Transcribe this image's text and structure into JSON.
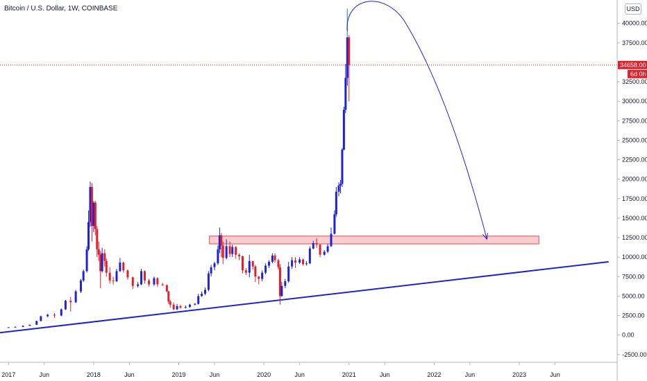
{
  "header": {
    "title": "Bitcoin / U.S. Dollar, 1W, COINBASE",
    "currency": "USD"
  },
  "price_marker": {
    "value": "34658.00",
    "countdown": "6d 0h"
  },
  "colors": {
    "up": "#1f22d4",
    "down": "#e0202a",
    "trend": "#1f22d4",
    "zone_fill": "#f9c7c9",
    "zone_stroke": "#e23a3e",
    "price_line": "#e0202a"
  },
  "chart_data": {
    "type": "candlestick",
    "x_tick_labels": [
      "2017",
      "Jun",
      "2018",
      "Jun",
      "2019",
      "Jun",
      "2020",
      "Jun",
      "2021",
      "Jun",
      "2022",
      "Jun",
      "2023",
      "Jun"
    ],
    "x_tick_dates": [
      2017.0,
      2017.42,
      2018.0,
      2018.42,
      2019.0,
      2019.42,
      2020.0,
      2020.42,
      2021.0,
      2021.42,
      2022.0,
      2022.42,
      2023.0,
      2023.42
    ],
    "y_tick_labels": [
      "-2500.00",
      "0.00",
      "2500.00",
      "5000.00",
      "7500.00",
      "10000.00",
      "12500.00",
      "15000.00",
      "17500.00",
      "20000.00",
      "22500.00",
      "25000.00",
      "27500.00",
      "30000.00",
      "32500.00",
      "37500.00",
      "40000.00"
    ],
    "ylim": [
      -3500,
      43000
    ],
    "xlim": [
      2016.9,
      2024.15
    ],
    "current_price": 34658,
    "resistance_zone": {
      "from": 2019.36,
      "to": 2023.23,
      "low": 11700,
      "high": 12700
    },
    "trendline": {
      "start": [
        2016.9,
        300
      ],
      "end": [
        2024.05,
        9400
      ]
    },
    "projection": {
      "start": [
        2020.98,
        39000
      ],
      "peak": [
        2021.0,
        42500
      ],
      "end": [
        2022.62,
        12300
      ]
    },
    "candles": [
      [
        2017.0,
        960,
        1000,
        900,
        1010
      ],
      [
        2017.08,
        1010,
        1050,
        970,
        1100
      ],
      [
        2017.17,
        1050,
        1190,
        1020,
        1230
      ],
      [
        2017.25,
        1190,
        1320,
        1150,
        1350
      ],
      [
        2017.33,
        1320,
        1800,
        1300,
        1850
      ],
      [
        2017.38,
        1800,
        2400,
        1750,
        2500
      ],
      [
        2017.46,
        2400,
        2600,
        2300,
        2750
      ],
      [
        2017.54,
        2600,
        2500,
        2200,
        2800
      ],
      [
        2017.62,
        2500,
        3300,
        2400,
        3400
      ],
      [
        2017.67,
        3300,
        4400,
        3200,
        4500
      ],
      [
        2017.73,
        4400,
        4200,
        3000,
        4900
      ],
      [
        2017.79,
        4200,
        5600,
        4100,
        5800
      ],
      [
        2017.85,
        5600,
        7000,
        5400,
        7200
      ],
      [
        2017.88,
        7000,
        8200,
        6800,
        8400
      ],
      [
        2017.92,
        8200,
        11000,
        8000,
        11400
      ],
      [
        2017.94,
        11000,
        14500,
        10800,
        16000
      ],
      [
        2017.96,
        14500,
        19000,
        13900,
        19700
      ],
      [
        2017.98,
        19000,
        14000,
        12000,
        19500
      ],
      [
        2018.0,
        14000,
        17000,
        13200,
        17200
      ],
      [
        2018.02,
        17000,
        13600,
        12800,
        17200
      ],
      [
        2018.04,
        13600,
        11000,
        10000,
        14000
      ],
      [
        2018.06,
        11000,
        10300,
        9500,
        12000
      ],
      [
        2018.08,
        10300,
        8200,
        6000,
        10800
      ],
      [
        2018.1,
        8200,
        10500,
        8000,
        11200
      ],
      [
        2018.13,
        10500,
        9500,
        8800,
        11000
      ],
      [
        2018.15,
        9500,
        8000,
        7500,
        9800
      ],
      [
        2018.19,
        8000,
        7000,
        6600,
        8700
      ],
      [
        2018.23,
        7000,
        6900,
        6500,
        7500
      ],
      [
        2018.27,
        6900,
        8200,
        6800,
        8500
      ],
      [
        2018.31,
        8200,
        9300,
        8100,
        9900
      ],
      [
        2018.35,
        9300,
        8300,
        8000,
        9400
      ],
      [
        2018.4,
        8300,
        7400,
        7100,
        8400
      ],
      [
        2018.46,
        7400,
        6300,
        5900,
        7500
      ],
      [
        2018.52,
        6300,
        6500,
        6100,
        6800
      ],
      [
        2018.56,
        6500,
        8200,
        6400,
        8500
      ],
      [
        2018.6,
        8200,
        7000,
        6600,
        8300
      ],
      [
        2018.65,
        7000,
        6500,
        6200,
        7200
      ],
      [
        2018.71,
        6500,
        7300,
        6300,
        7500
      ],
      [
        2018.75,
        7300,
        6500,
        6200,
        7400
      ],
      [
        2018.81,
        6500,
        6400,
        6300,
        6700
      ],
      [
        2018.86,
        6400,
        5600,
        5500,
        6500
      ],
      [
        2018.88,
        5600,
        4300,
        4000,
        5700
      ],
      [
        2018.9,
        4300,
        3900,
        3500,
        4500
      ],
      [
        2018.94,
        3900,
        3300,
        3200,
        4200
      ],
      [
        2018.98,
        3300,
        3700,
        3200,
        4000
      ],
      [
        2019.02,
        3700,
        3500,
        3400,
        3900
      ],
      [
        2019.08,
        3500,
        3600,
        3400,
        3800
      ],
      [
        2019.13,
        3600,
        3900,
        3500,
        4000
      ],
      [
        2019.19,
        3900,
        4000,
        3800,
        4100
      ],
      [
        2019.23,
        4000,
        5000,
        3900,
        5300
      ],
      [
        2019.27,
        5000,
        5300,
        4900,
        5600
      ],
      [
        2019.31,
        5300,
        5800,
        5100,
        6100
      ],
      [
        2019.35,
        5800,
        7900,
        5600,
        8200
      ],
      [
        2019.38,
        7900,
        8700,
        7500,
        9000
      ],
      [
        2019.42,
        8700,
        9200,
        8300,
        9400
      ],
      [
        2019.46,
        9200,
        11000,
        9000,
        11500
      ],
      [
        2019.48,
        11000,
        12800,
        10500,
        13800
      ],
      [
        2019.5,
        12800,
        11500,
        10000,
        13100
      ],
      [
        2019.52,
        11500,
        9900,
        9100,
        12000
      ],
      [
        2019.56,
        9900,
        11400,
        9700,
        12300
      ],
      [
        2019.6,
        11400,
        10400,
        10000,
        12000
      ],
      [
        2019.63,
        10400,
        11300,
        10000,
        11600
      ],
      [
        2019.67,
        11300,
        10300,
        9800,
        11400
      ],
      [
        2019.71,
        10300,
        10100,
        9600,
        10500
      ],
      [
        2019.75,
        10100,
        8300,
        7900,
        10200
      ],
      [
        2019.79,
        8300,
        8000,
        7700,
        8600
      ],
      [
        2019.83,
        8000,
        9500,
        7400,
        10300
      ],
      [
        2019.87,
        9500,
        8800,
        8400,
        9500
      ],
      [
        2019.9,
        8800,
        7500,
        6800,
        9000
      ],
      [
        2019.94,
        7500,
        7200,
        6500,
        7600
      ],
      [
        2019.98,
        7200,
        8000,
        6900,
        8300
      ],
      [
        2020.02,
        8000,
        8900,
        7800,
        9200
      ],
      [
        2020.06,
        8900,
        9400,
        8600,
        9600
      ],
      [
        2020.1,
        9400,
        10200,
        9200,
        10500
      ],
      [
        2020.13,
        10200,
        9600,
        9300,
        10500
      ],
      [
        2020.17,
        9600,
        8700,
        8400,
        9800
      ],
      [
        2020.19,
        8700,
        5000,
        3900,
        9100
      ],
      [
        2020.21,
        5000,
        6300,
        4900,
        6800
      ],
      [
        2020.25,
        6300,
        6900,
        6000,
        7200
      ],
      [
        2020.29,
        6900,
        8800,
        6700,
        9400
      ],
      [
        2020.33,
        8800,
        9600,
        8500,
        10000
      ],
      [
        2020.37,
        9600,
        9300,
        8600,
        10000
      ],
      [
        2020.42,
        9300,
        9700,
        9100,
        10000
      ],
      [
        2020.46,
        9700,
        9100,
        8900,
        9800
      ],
      [
        2020.5,
        9100,
        9200,
        8900,
        9500
      ],
      [
        2020.54,
        9200,
        11100,
        9100,
        11400
      ],
      [
        2020.58,
        11100,
        11800,
        11000,
        12100
      ],
      [
        2020.62,
        11800,
        11600,
        11200,
        12400
      ],
      [
        2020.66,
        11600,
        10300,
        10000,
        11700
      ],
      [
        2020.71,
        10300,
        10700,
        10200,
        10900
      ],
      [
        2020.75,
        10700,
        11400,
        10500,
        11700
      ],
      [
        2020.79,
        11400,
        13000,
        11300,
        13800
      ],
      [
        2020.83,
        13000,
        15500,
        12900,
        16000
      ],
      [
        2020.85,
        15500,
        18400,
        15200,
        19000
      ],
      [
        2020.88,
        18400,
        19200,
        17800,
        19600
      ],
      [
        2020.9,
        19200,
        19400,
        18200,
        19900
      ],
      [
        2020.92,
        19400,
        23800,
        19000,
        24000
      ],
      [
        2020.94,
        23800,
        28900,
        23700,
        29300
      ],
      [
        2020.96,
        28900,
        33000,
        28500,
        34800
      ],
      [
        2020.98,
        33000,
        38200,
        32000,
        41900
      ],
      [
        2021.0,
        38200,
        34658,
        30000,
        38500
      ]
    ]
  }
}
